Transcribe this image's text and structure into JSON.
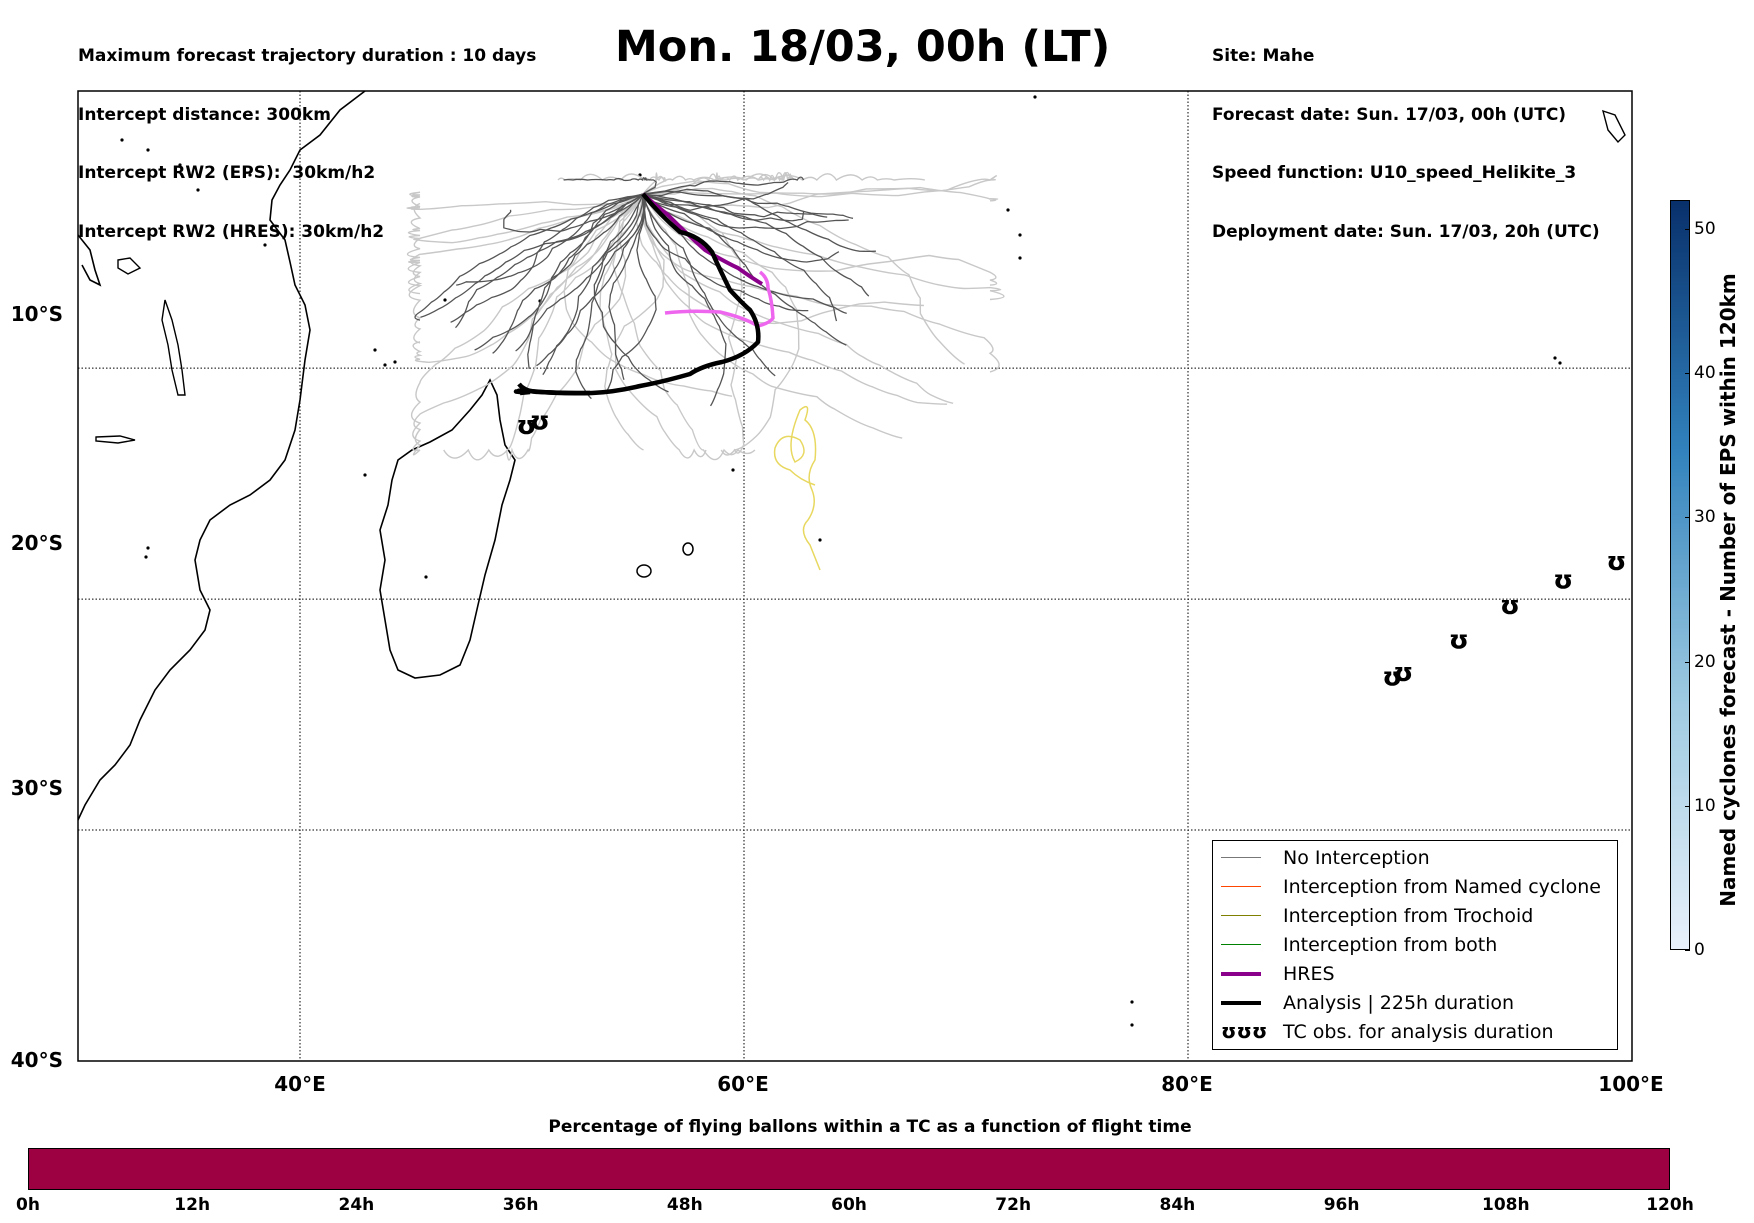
{
  "header": {
    "left": [
      "Maximum forecast trajectory duration : 10 days",
      "Intercept distance: 300km",
      "Intercept RW2 (EPS):  30km/h2",
      "Intercept RW2 (HRES): 30km/h2"
    ],
    "right": [
      "Site: Mahe",
      "Forecast date: Sun. 17/03, 00h (UTC)",
      "Speed function: U10_speed_Helikite_3",
      "Deployment date: Sun. 17/03, 20h (UTC)"
    ],
    "title": "Mon. 18/03, 00h (LT)"
  },
  "map": {
    "lon_range": [
      30,
      100
    ],
    "lat_range": [
      -40,
      2
    ],
    "lat_labels": [
      "10°S",
      "20°S",
      "30°S",
      "40°S"
    ],
    "lat_values": [
      -10,
      -20,
      -30,
      -40
    ],
    "lon_labels": [
      "40°E",
      "60°E",
      "80°E",
      "100°E"
    ],
    "lon_values": [
      40,
      60,
      80,
      100
    ],
    "grid": true,
    "colors": {
      "no_interception": "#555555",
      "named_cyclone": "#ff4500",
      "trochoid": "#808000",
      "both": "#008000",
      "hres": "#8b008b",
      "analysis": "#000000",
      "ensemble_light": "#c8c8c8",
      "hres_extended": "#ee66ee",
      "yellow_track": "#e8d860"
    }
  },
  "legend": {
    "placement": "bottom-right",
    "items": [
      {
        "label": "No Interception",
        "color": "#777777",
        "width": 1.5
      },
      {
        "label": "Interception from Named cyclone",
        "color": "#ff4500",
        "width": 1.5
      },
      {
        "label": "Interception from Trochoid",
        "color": "#808000",
        "width": 1.5
      },
      {
        "label": "Interception from both",
        "color": "#008000",
        "width": 1.5
      },
      {
        "label": "HRES",
        "color": "#8b008b",
        "width": 4
      },
      {
        "label": "Analysis | 225h duration",
        "color": "#000000",
        "width": 4
      },
      {
        "label": "TC obs. for analysis duration",
        "color": "#000000",
        "width": 0,
        "symbol": "ʊʊʊ"
      }
    ]
  },
  "tc_obs": [
    {
      "lon": 50.2,
      "lat": -12.5
    },
    {
      "lon": 50.8,
      "lat": -12.3
    },
    {
      "lon": 89.2,
      "lat": -23.4
    },
    {
      "lon": 89.7,
      "lat": -23.2
    },
    {
      "lon": 92.2,
      "lat": -21.8
    },
    {
      "lon": 94.5,
      "lat": -20.3
    },
    {
      "lon": 96.9,
      "lat": -19.2
    },
    {
      "lon": 99.3,
      "lat": -18.4
    }
  ],
  "colorbar_vertical": {
    "label": "Named cyclones forecast - Number of EPS within 120km",
    "ticks": [
      "0",
      "10",
      "20",
      "30",
      "40",
      "50"
    ],
    "values": [
      0,
      10,
      20,
      30,
      40,
      50
    ],
    "max": 52,
    "color_low": "#e8f1fb",
    "color_high": "#08306b"
  },
  "colorbar_horizontal": {
    "title": "Percentage of flying ballons within a TC as a function of flight time",
    "ticks": [
      "0h",
      "12h",
      "24h",
      "36h",
      "48h",
      "60h",
      "72h",
      "84h",
      "96h",
      "108h",
      "120h"
    ],
    "fill_color": "#9e0142"
  }
}
